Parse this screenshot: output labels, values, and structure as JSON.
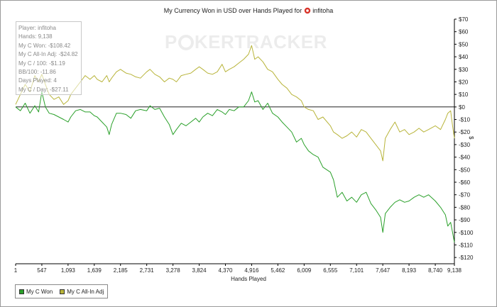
{
  "chart_title": "My Currency Won in USD over Hands Played for",
  "player_name": "infitoha",
  "stats": [
    "Player: infitoha",
    "Hands: 9,138",
    "My C Won: -$108.42",
    "My C All-In Adj: -$24.82",
    "My C / 100: -$1.19",
    "BB/100: -11.86",
    "Days Played: 4",
    "My C / Day: -$27.11"
  ],
  "watermark": {
    "left": "P",
    "right": "KERTRACKER"
  },
  "colors": {
    "won": "#2aa02a",
    "allin": "#b8b43a",
    "zero_line": "#000000",
    "axis": "#000000"
  },
  "chart_data": {
    "type": "line",
    "xlabel": "Hands Played",
    "ylabel": "$",
    "xlim": [
      1,
      9138
    ],
    "ylim": [
      -125,
      70
    ],
    "x_ticks": [
      1,
      547,
      1093,
      1639,
      2185,
      2731,
      3278,
      3824,
      4370,
      4916,
      5462,
      6009,
      6555,
      7101,
      7647,
      8193,
      8740,
      9138
    ],
    "x_tick_labels": [
      "1",
      "547",
      "1,093",
      "1,639",
      "2,185",
      "2,731",
      "3,278",
      "3,824",
      "4,370",
      "4,916",
      "5,462",
      "6,009",
      "6,555",
      "7,101",
      "7,647",
      "8,193",
      "8,740",
      "9,138"
    ],
    "y_ticks": [
      70,
      60,
      50,
      40,
      30,
      20,
      10,
      0,
      -10,
      -20,
      -30,
      -40,
      -50,
      -60,
      -70,
      -80,
      -90,
      -100,
      -110,
      -120
    ],
    "y_tick_labels": [
      "$70",
      "$60",
      "$50",
      "$40",
      "$30",
      "$20",
      "$10",
      "$0",
      "-$10",
      "-$20",
      "-$30",
      "-$40",
      "-$50",
      "-$60",
      "-$70",
      "-$80",
      "-$90",
      "-$100",
      "-$110",
      "-$120"
    ],
    "legend_position": "bottom-left",
    "grid": false,
    "series": [
      {
        "name": "My C Won",
        "color": "#2aa02a",
        "points": [
          [
            1,
            0
          ],
          [
            100,
            -3
          ],
          [
            200,
            3
          ],
          [
            300,
            -5
          ],
          [
            400,
            1
          ],
          [
            480,
            -4
          ],
          [
            547,
            12
          ],
          [
            620,
            0
          ],
          [
            700,
            -5
          ],
          [
            800,
            -6
          ],
          [
            900,
            -8
          ],
          [
            1000,
            -10
          ],
          [
            1093,
            -12
          ],
          [
            1150,
            -8
          ],
          [
            1250,
            -3
          ],
          [
            1350,
            -2
          ],
          [
            1450,
            -4
          ],
          [
            1550,
            -4
          ],
          [
            1639,
            -7
          ],
          [
            1700,
            -8
          ],
          [
            1800,
            -12
          ],
          [
            1900,
            -16
          ],
          [
            1950,
            -22
          ],
          [
            2000,
            -14
          ],
          [
            2100,
            -5
          ],
          [
            2185,
            -5
          ],
          [
            2300,
            -6
          ],
          [
            2400,
            -9
          ],
          [
            2500,
            -3
          ],
          [
            2600,
            -2
          ],
          [
            2731,
            -3
          ],
          [
            2800,
            1
          ],
          [
            2900,
            -2
          ],
          [
            3000,
            -1
          ],
          [
            3100,
            -8
          ],
          [
            3200,
            -14
          ],
          [
            3278,
            -22
          ],
          [
            3350,
            -18
          ],
          [
            3450,
            -13
          ],
          [
            3550,
            -15
          ],
          [
            3650,
            -12
          ],
          [
            3750,
            -9
          ],
          [
            3824,
            -12
          ],
          [
            3900,
            -8
          ],
          [
            4000,
            -5
          ],
          [
            4100,
            -7
          ],
          [
            4200,
            -2
          ],
          [
            4300,
            -4
          ],
          [
            4370,
            -6
          ],
          [
            4450,
            -2
          ],
          [
            4550,
            -3
          ],
          [
            4650,
            0
          ],
          [
            4750,
            0
          ],
          [
            4850,
            5
          ],
          [
            4916,
            12
          ],
          [
            4980,
            4
          ],
          [
            5050,
            5
          ],
          [
            5150,
            -2
          ],
          [
            5250,
            3
          ],
          [
            5350,
            -5
          ],
          [
            5462,
            -8
          ],
          [
            5550,
            -12
          ],
          [
            5650,
            -16
          ],
          [
            5750,
            -20
          ],
          [
            5850,
            -28
          ],
          [
            5950,
            -25
          ],
          [
            6009,
            -30
          ],
          [
            6100,
            -35
          ],
          [
            6200,
            -38
          ],
          [
            6300,
            -40
          ],
          [
            6400,
            -48
          ],
          [
            6555,
            -52
          ],
          [
            6620,
            -58
          ],
          [
            6700,
            -72
          ],
          [
            6800,
            -68
          ],
          [
            6900,
            -75
          ],
          [
            7000,
            -72
          ],
          [
            7101,
            -76
          ],
          [
            7200,
            -70
          ],
          [
            7300,
            -68
          ],
          [
            7400,
            -77
          ],
          [
            7500,
            -82
          ],
          [
            7600,
            -88
          ],
          [
            7647,
            -100
          ],
          [
            7700,
            -85
          ],
          [
            7800,
            -80
          ],
          [
            7900,
            -76
          ],
          [
            8000,
            -74
          ],
          [
            8100,
            -76
          ],
          [
            8193,
            -75
          ],
          [
            8300,
            -72
          ],
          [
            8400,
            -70
          ],
          [
            8500,
            -72
          ],
          [
            8600,
            -70
          ],
          [
            8740,
            -75
          ],
          [
            8850,
            -80
          ],
          [
            8950,
            -86
          ],
          [
            9000,
            -95
          ],
          [
            9060,
            -92
          ],
          [
            9100,
            -100
          ],
          [
            9138,
            -108
          ]
        ]
      },
      {
        "name": "My C All-In Adj",
        "color": "#b8b43a",
        "points": [
          [
            1,
            2
          ],
          [
            100,
            10
          ],
          [
            200,
            18
          ],
          [
            300,
            12
          ],
          [
            400,
            25
          ],
          [
            480,
            20
          ],
          [
            547,
            26
          ],
          [
            620,
            18
          ],
          [
            700,
            10
          ],
          [
            800,
            6
          ],
          [
            900,
            8
          ],
          [
            1000,
            2
          ],
          [
            1093,
            5
          ],
          [
            1150,
            10
          ],
          [
            1250,
            15
          ],
          [
            1350,
            20
          ],
          [
            1450,
            25
          ],
          [
            1550,
            22
          ],
          [
            1639,
            25
          ],
          [
            1700,
            22
          ],
          [
            1800,
            20
          ],
          [
            1900,
            25
          ],
          [
            1950,
            20
          ],
          [
            2000,
            23
          ],
          [
            2100,
            28
          ],
          [
            2185,
            30
          ],
          [
            2300,
            27
          ],
          [
            2400,
            26
          ],
          [
            2500,
            24
          ],
          [
            2600,
            23
          ],
          [
            2731,
            28
          ],
          [
            2800,
            30
          ],
          [
            2900,
            26
          ],
          [
            3000,
            24
          ],
          [
            3100,
            20
          ],
          [
            3200,
            23
          ],
          [
            3278,
            22
          ],
          [
            3350,
            20
          ],
          [
            3450,
            25
          ],
          [
            3550,
            26
          ],
          [
            3650,
            27
          ],
          [
            3750,
            30
          ],
          [
            3824,
            32
          ],
          [
            3900,
            30
          ],
          [
            4000,
            27
          ],
          [
            4100,
            26
          ],
          [
            4200,
            28
          ],
          [
            4300,
            34
          ],
          [
            4370,
            28
          ],
          [
            4450,
            30
          ],
          [
            4550,
            32
          ],
          [
            4650,
            35
          ],
          [
            4750,
            38
          ],
          [
            4850,
            42
          ],
          [
            4916,
            49
          ],
          [
            4980,
            38
          ],
          [
            5050,
            40
          ],
          [
            5150,
            36
          ],
          [
            5250,
            30
          ],
          [
            5350,
            28
          ],
          [
            5462,
            22
          ],
          [
            5550,
            18
          ],
          [
            5650,
            15
          ],
          [
            5750,
            10
          ],
          [
            5850,
            8
          ],
          [
            5950,
            5
          ],
          [
            6009,
            0
          ],
          [
            6100,
            -2
          ],
          [
            6200,
            -3
          ],
          [
            6300,
            -10
          ],
          [
            6400,
            -8
          ],
          [
            6555,
            -15
          ],
          [
            6620,
            -20
          ],
          [
            6700,
            -22
          ],
          [
            6800,
            -25
          ],
          [
            6900,
            -23
          ],
          [
            7000,
            -20
          ],
          [
            7101,
            -24
          ],
          [
            7200,
            -18
          ],
          [
            7300,
            -20
          ],
          [
            7400,
            -25
          ],
          [
            7500,
            -30
          ],
          [
            7600,
            -35
          ],
          [
            7647,
            -43
          ],
          [
            7700,
            -25
          ],
          [
            7800,
            -18
          ],
          [
            7900,
            -12
          ],
          [
            8000,
            -20
          ],
          [
            8100,
            -18
          ],
          [
            8193,
            -22
          ],
          [
            8300,
            -20
          ],
          [
            8400,
            -17
          ],
          [
            8500,
            -20
          ],
          [
            8600,
            -18
          ],
          [
            8740,
            -15
          ],
          [
            8850,
            -18
          ],
          [
            8950,
            -10
          ],
          [
            9000,
            -5
          ],
          [
            9060,
            -3
          ],
          [
            9100,
            -15
          ],
          [
            9138,
            -25
          ]
        ]
      }
    ]
  }
}
